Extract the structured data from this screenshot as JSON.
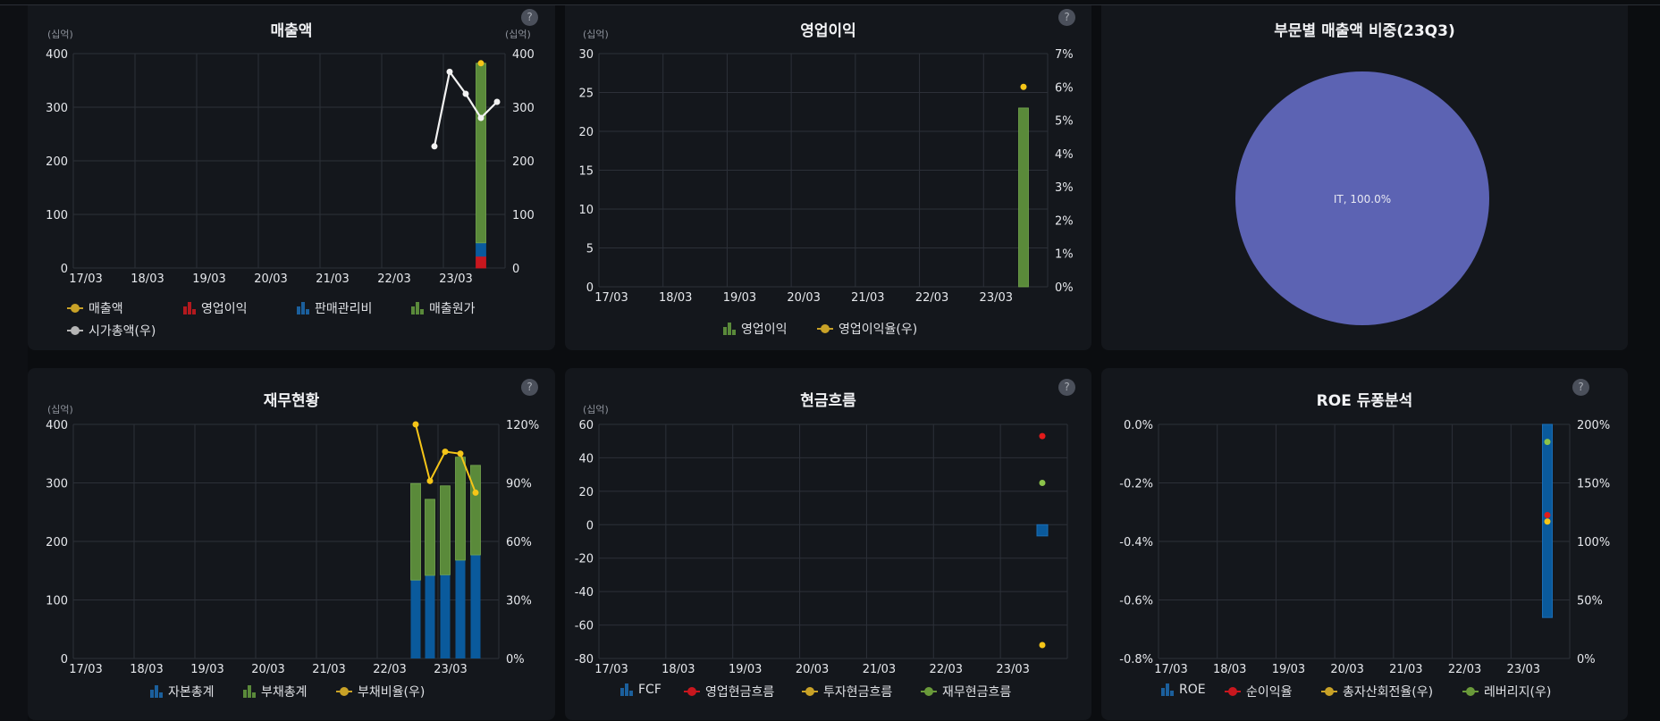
{
  "colors": {
    "grid": "#2c3038",
    "axis_text": "#e6e8ec",
    "revenue": "#f5c518",
    "op_profit": "#c8171e",
    "sga": "#0a5a9c",
    "cogs": "#5a8a3a",
    "market_cap": "#f0f0f0",
    "equity": "#0a5a9c",
    "debt": "#5a8a3a",
    "debt_ratio": "#f5c518",
    "pie": "#5c63b3"
  },
  "x_ticks": [
    "17/03",
    "18/03",
    "19/03",
    "20/03",
    "21/03",
    "22/03",
    "23/03"
  ],
  "panels": {
    "revenue": {
      "title": "매출액",
      "unit_left": "(십억)",
      "unit_right": "(십억)",
      "help": "?",
      "legend": [
        {
          "label": "매출액",
          "type": "line",
          "color": "#c9a227"
        },
        {
          "label": "영업이익",
          "type": "bar",
          "color": "#b3191e"
        },
        {
          "label": "판매관리비",
          "type": "bar",
          "color": "#1b5f9c"
        },
        {
          "label": "매출원가",
          "type": "bar",
          "color": "#5a8a3a"
        },
        {
          "label": "시가총액(우)",
          "type": "line",
          "color": "#b5b5b5"
        }
      ]
    },
    "op_profit": {
      "title": "영업이익",
      "unit_left": "(십억)",
      "help": "?",
      "legend": [
        {
          "label": "영업이익",
          "type": "bar",
          "color": "#5a8a3a"
        },
        {
          "label": "영업이익율(우)",
          "type": "line",
          "color": "#c9a227"
        }
      ]
    },
    "segment": {
      "title": "부문별 매출액 비중(23Q3)",
      "slice_label": "IT, 100.0%"
    },
    "financials": {
      "title": "재무현황",
      "unit_left": "(십억)",
      "help": "?",
      "legend": [
        {
          "label": "자본총계",
          "type": "bar",
          "color": "#1b5f9c"
        },
        {
          "label": "부채총계",
          "type": "bar",
          "color": "#5a8a3a"
        },
        {
          "label": "부채비율(우)",
          "type": "line",
          "color": "#c9a227"
        }
      ]
    },
    "cashflow": {
      "title": "현금흐름",
      "unit_left": "(십억)",
      "help": "?",
      "legend": [
        {
          "label": "FCF",
          "type": "bar",
          "color": "#1b5f9c"
        },
        {
          "label": "영업현금흐름",
          "type": "line",
          "color": "#c8171e"
        },
        {
          "label": "투자현금흐름",
          "type": "line",
          "color": "#c9a227"
        },
        {
          "label": "재무현금흐름",
          "type": "line",
          "color": "#6a9a3a"
        }
      ]
    },
    "roe": {
      "title": "ROE 듀퐁분석",
      "help": "?",
      "legend": [
        {
          "label": "ROE",
          "type": "bar",
          "color": "#1b5f9c"
        },
        {
          "label": "순이익율",
          "type": "line",
          "color": "#c8171e"
        },
        {
          "label": "총자산회전율(우)",
          "type": "line",
          "color": "#c9a227"
        },
        {
          "label": "레버리지(우)",
          "type": "line",
          "color": "#6a9a3a"
        }
      ]
    }
  },
  "chart_data": [
    {
      "type": "bar",
      "title": "매출액",
      "ylabel": "(십억)",
      "y2label": "(십억)",
      "categories": [
        "17/03",
        "18/03",
        "19/03",
        "20/03",
        "21/03",
        "22/03",
        "23/03"
      ],
      "ylim": [
        0,
        400
      ],
      "y2lim": [
        0,
        400
      ],
      "yticks": [
        0,
        100,
        200,
        300,
        400
      ],
      "y2ticks": [
        0,
        100,
        200,
        300,
        400
      ],
      "grid": true,
      "legend_position": "bottom",
      "stacked_bars": [
        {
          "x": "23Q3",
          "series": {
            "영업이익": 22,
            "판매관리비": 25,
            "매출원가": 335
          }
        }
      ],
      "series": [
        {
          "name": "매출액",
          "type": "scatter",
          "points": [
            {
              "x": "23Q3",
              "y": 382
            }
          ]
        },
        {
          "name": "시가총액(우)",
          "type": "line",
          "axis": "right",
          "points": [
            {
              "x": "22Q4",
              "y": 227
            },
            {
              "x": "23Q1",
              "y": 366
            },
            {
              "x": "23Q2",
              "y": 325
            },
            {
              "x": "23Q3",
              "y": 280
            },
            {
              "x": "23Q4",
              "y": 310
            }
          ]
        }
      ]
    },
    {
      "type": "bar",
      "title": "영업이익",
      "ylabel": "(십억)",
      "categories": [
        "17/03",
        "18/03",
        "19/03",
        "20/03",
        "21/03",
        "22/03",
        "23/03"
      ],
      "ylim": [
        0,
        30
      ],
      "yticks": [
        0,
        5,
        10,
        15,
        20,
        25,
        30
      ],
      "y2lim": [
        0,
        7
      ],
      "y2ticks": [
        "0%",
        "1%",
        "2%",
        "3%",
        "4%",
        "5%",
        "6%",
        "7%"
      ],
      "grid": true,
      "legend_position": "bottom",
      "series": [
        {
          "name": "영업이익",
          "type": "bar",
          "points": [
            {
              "x": "23Q3",
              "y": 23
            }
          ]
        },
        {
          "name": "영업이익율(우)",
          "type": "scatter",
          "axis": "right",
          "points": [
            {
              "x": "23Q3",
              "y": 6.0
            }
          ]
        }
      ]
    },
    {
      "type": "pie",
      "title": "부문별 매출액 비중(23Q3)",
      "labels": [
        "IT"
      ],
      "values": [
        100.0
      ]
    },
    {
      "type": "bar",
      "title": "재무현황",
      "ylabel": "(십억)",
      "categories": [
        "17/03",
        "18/03",
        "19/03",
        "20/03",
        "21/03",
        "22/03",
        "23/03"
      ],
      "ylim": [
        0,
        400
      ],
      "yticks": [
        0,
        100,
        200,
        300,
        400
      ],
      "y2lim": [
        0,
        120
      ],
      "y2ticks": [
        "0%",
        "30%",
        "60%",
        "90%",
        "120%"
      ],
      "grid": true,
      "legend_position": "bottom",
      "x": [
        "22Q3",
        "22Q4",
        "23Q1",
        "23Q2",
        "23Q3"
      ],
      "series": [
        {
          "name": "자본총계",
          "type": "bar",
          "stack": "a",
          "values": [
            134,
            142,
            143,
            168,
            177
          ]
        },
        {
          "name": "부채총계",
          "type": "bar",
          "stack": "a",
          "values": [
            165,
            130,
            152,
            176,
            153
          ]
        },
        {
          "name": "부채비율(우)",
          "type": "line",
          "axis": "right",
          "values": [
            120,
            91,
            106,
            105,
            85
          ]
        }
      ]
    },
    {
      "type": "scatter",
      "title": "현금흐름",
      "ylabel": "(십억)",
      "categories": [
        "17/03",
        "18/03",
        "19/03",
        "20/03",
        "21/03",
        "22/03",
        "23/03"
      ],
      "ylim": [
        -80,
        60
      ],
      "yticks": [
        -80,
        -60,
        -40,
        -20,
        0,
        20,
        40,
        60
      ],
      "grid": true,
      "legend_position": "bottom",
      "series": [
        {
          "name": "FCF",
          "type": "bar",
          "points": [
            {
              "x": "23Q3",
              "y": -3.5
            }
          ]
        },
        {
          "name": "영업현금흐름",
          "type": "scatter",
          "points": [
            {
              "x": "23Q3",
              "y": 53
            }
          ]
        },
        {
          "name": "투자현금흐름",
          "type": "scatter",
          "points": [
            {
              "x": "23Q3",
              "y": -72
            }
          ]
        },
        {
          "name": "재무현금흐름",
          "type": "scatter",
          "points": [
            {
              "x": "23Q3",
              "y": 25
            }
          ]
        }
      ]
    },
    {
      "type": "bar",
      "title": "ROE 듀퐁분석",
      "categories": [
        "17/03",
        "18/03",
        "19/03",
        "20/03",
        "21/03",
        "22/03",
        "23/03"
      ],
      "ylim": [
        -0.8,
        0.0
      ],
      "yticks": [
        "-0.8%",
        "-0.6%",
        "-0.4%",
        "-0.2%",
        "0.0%"
      ],
      "y2lim": [
        0,
        200
      ],
      "y2ticks": [
        "0%",
        "50%",
        "100%",
        "150%",
        "200%"
      ],
      "grid": true,
      "legend_position": "bottom",
      "series": [
        {
          "name": "ROE",
          "type": "bar",
          "points": [
            {
              "x": "23Q3",
              "y": -0.66
            }
          ]
        },
        {
          "name": "순이익율",
          "type": "scatter",
          "points": [
            {
              "x": "23Q3",
              "y": -0.31
            }
          ]
        },
        {
          "name": "총자산회전율(우)",
          "type": "scatter",
          "axis": "right",
          "points": [
            {
              "x": "23Q3",
              "y": 117
            }
          ]
        },
        {
          "name": "레버리지(우)",
          "type": "scatter",
          "axis": "right",
          "points": [
            {
              "x": "23Q3",
              "y": 185
            }
          ]
        }
      ]
    }
  ]
}
